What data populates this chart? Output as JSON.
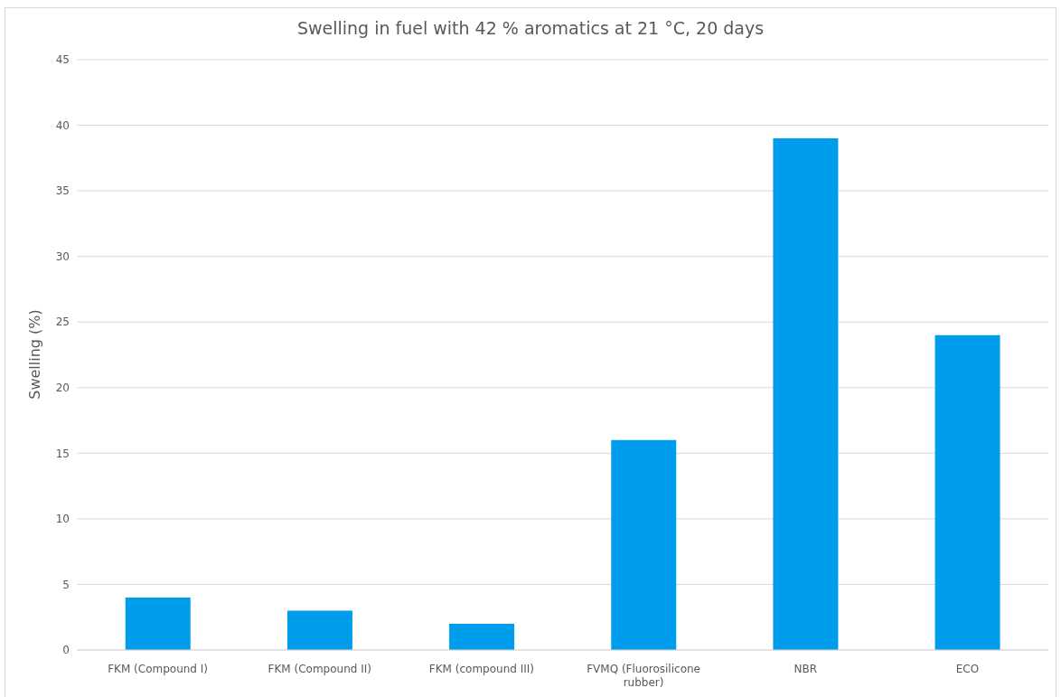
{
  "chart_data": {
    "type": "bar",
    "title": "Swelling in fuel with 42 % aromatics at 21 °C, 20 days",
    "ylabel": "Swelling (%)",
    "categories": [
      "FKM (Compound I)",
      "FKM (Compound II)",
      "FKM (compound III)",
      "FVMQ (Fluorosilicone rubber)",
      "NBR",
      "ECO"
    ],
    "values": [
      4,
      3,
      2,
      16,
      39,
      24
    ],
    "color": "#019ded",
    "ylim": [
      0,
      45
    ],
    "yticks": [
      0,
      5,
      10,
      15,
      20,
      25,
      30,
      35,
      40,
      45
    ],
    "grid": "y"
  }
}
